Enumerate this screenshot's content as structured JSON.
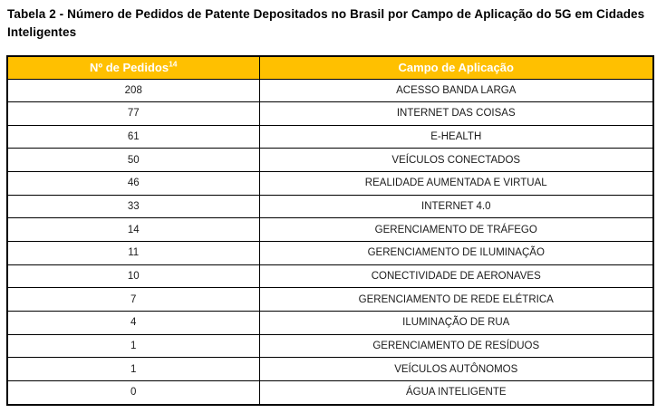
{
  "title": "Tabela 2 - Número de Pedidos de Patente Depositados no Brasil por Campo de Aplicação do 5G em Cidades Inteligentes",
  "colors": {
    "header_bg": "#FFC000",
    "header_text": "#FFFFFF",
    "border": "#000000",
    "body_text": "#1A1A1A",
    "page_bg": "#FFFFFF"
  },
  "table": {
    "columns": [
      {
        "label": "Nº de Pedidos",
        "superscript": "14"
      },
      {
        "label": "Campo de Aplicação",
        "superscript": ""
      }
    ],
    "rows": [
      {
        "pedidos": "208",
        "campo": "ACESSO BANDA LARGA"
      },
      {
        "pedidos": "77",
        "campo": "INTERNET DAS COISAS"
      },
      {
        "pedidos": "61",
        "campo": "E-HEALTH"
      },
      {
        "pedidos": "50",
        "campo": "VEÍCULOS CONECTADOS"
      },
      {
        "pedidos": "46",
        "campo": "REALIDADE AUMENTADA E VIRTUAL"
      },
      {
        "pedidos": "33",
        "campo": "INTERNET 4.0"
      },
      {
        "pedidos": "14",
        "campo": "GERENCIAMENTO DE TRÁFEGO"
      },
      {
        "pedidos": "11",
        "campo": "GERENCIAMENTO DE ILUMINAÇÃO"
      },
      {
        "pedidos": "10",
        "campo": "CONECTIVIDADE DE AERONAVES"
      },
      {
        "pedidos": "7",
        "campo": "GERENCIAMENTO DE REDE ELÉTRICA"
      },
      {
        "pedidos": "4",
        "campo": "ILUMINAÇÃO DE RUA"
      },
      {
        "pedidos": "1",
        "campo": "GERENCIAMENTO DE RESÍDUOS"
      },
      {
        "pedidos": "1",
        "campo": "VEÍCULOS AUTÔNOMOS"
      },
      {
        "pedidos": "0",
        "campo": "ÁGUA INTELIGENTE"
      }
    ]
  }
}
